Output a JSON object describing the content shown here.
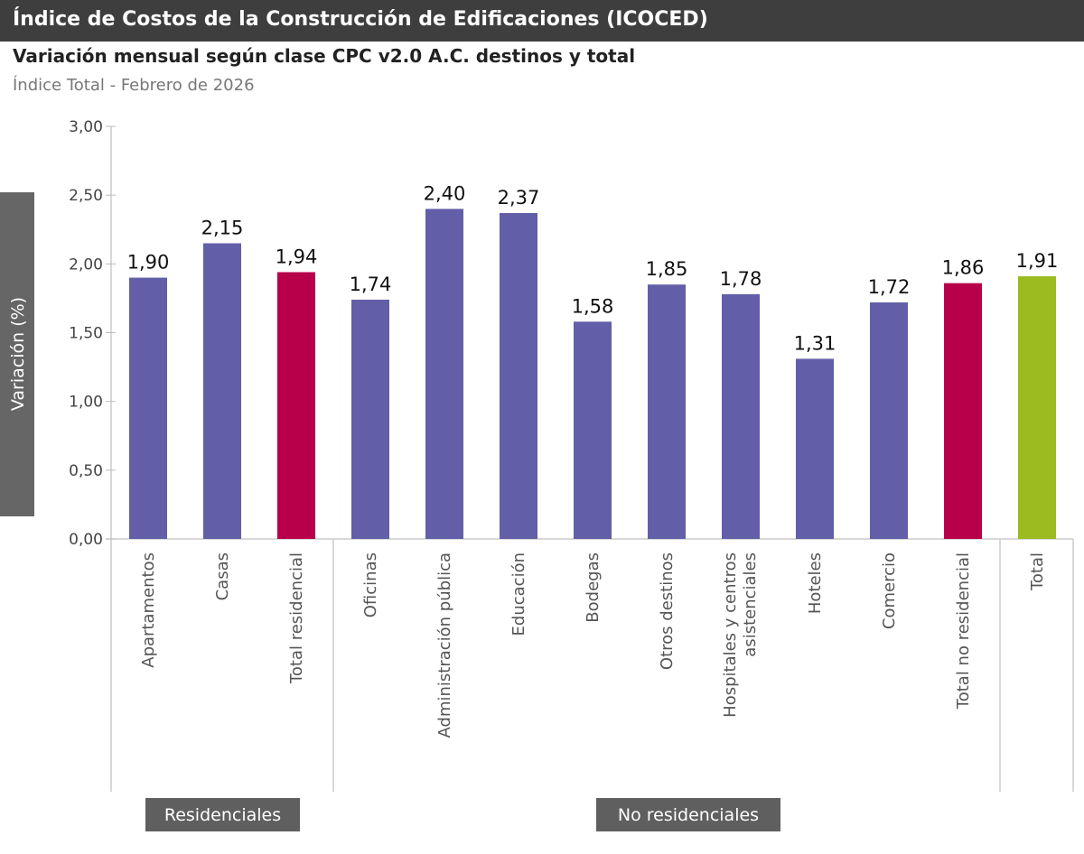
{
  "header": {
    "title": "Índice de Costos de la Construcción de Edificaciones (ICOCED)"
  },
  "subtitle": "Variación mensual según clase CPC v2.0 A.C. destinos y total",
  "subtitle2": "Índice Total - Febrero de 2026",
  "chart_data": {
    "type": "bar",
    "ylabel": "Variación (%)",
    "ylim": [
      0,
      3
    ],
    "yticks": [
      "0,00",
      "0,50",
      "1,00",
      "1,50",
      "2,00",
      "2,50",
      "3,00"
    ],
    "categories": [
      "Apartamentos",
      "Casas",
      "Total residencial",
      "Oficinas",
      "Administración pública",
      "Educación",
      "Bodegas",
      "Otros destinos",
      "Hospitales y centros asistenciales",
      "Hoteles",
      "Comercio",
      "Total no residencial",
      "Total"
    ],
    "values": [
      1.9,
      2.15,
      1.94,
      1.74,
      2.4,
      2.37,
      1.58,
      1.85,
      1.78,
      1.31,
      1.72,
      1.86,
      1.91
    ],
    "value_labels": [
      "1,90",
      "2,15",
      "1,94",
      "1,74",
      "2,40",
      "2,37",
      "1,58",
      "1,85",
      "1,78",
      "1,31",
      "1,72",
      "1,86",
      "1,91"
    ],
    "bar_colors": [
      "#625ea8",
      "#625ea8",
      "#b8004a",
      "#625ea8",
      "#625ea8",
      "#625ea8",
      "#625ea8",
      "#625ea8",
      "#625ea8",
      "#625ea8",
      "#625ea8",
      "#b8004a",
      "#9bbb20"
    ],
    "groups": [
      {
        "label": "Residenciales",
        "from": 0,
        "to": 2
      },
      {
        "label": "No residenciales",
        "from": 3,
        "to": 11
      }
    ],
    "grid": false,
    "legend": "none"
  }
}
